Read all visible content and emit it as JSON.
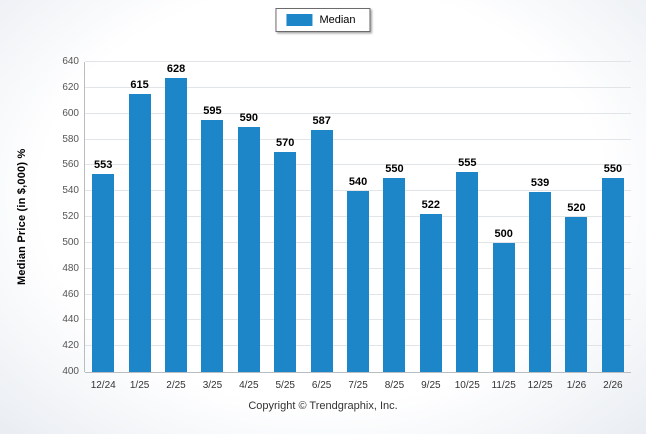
{
  "chart_data": {
    "type": "bar",
    "title": "",
    "legend": [
      "Median"
    ],
    "categories": [
      "12/24",
      "1/25",
      "2/25",
      "3/25",
      "4/25",
      "5/25",
      "6/25",
      "7/25",
      "8/25",
      "9/25",
      "10/25",
      "11/25",
      "12/25",
      "1/26",
      "2/26"
    ],
    "values": [
      553,
      615,
      628,
      595,
      590,
      570,
      587,
      540,
      550,
      522,
      555,
      500,
      539,
      520,
      550
    ],
    "xlabel": "",
    "ylabel": "Median Price (in $,000) %",
    "ylim": [
      400,
      640
    ],
    "ytick_step": 20,
    "grid": true,
    "legend_position": "top-center",
    "colors": {
      "bar": "#1d86c8"
    },
    "footer": "Copyright © Trendgraphix, Inc."
  }
}
